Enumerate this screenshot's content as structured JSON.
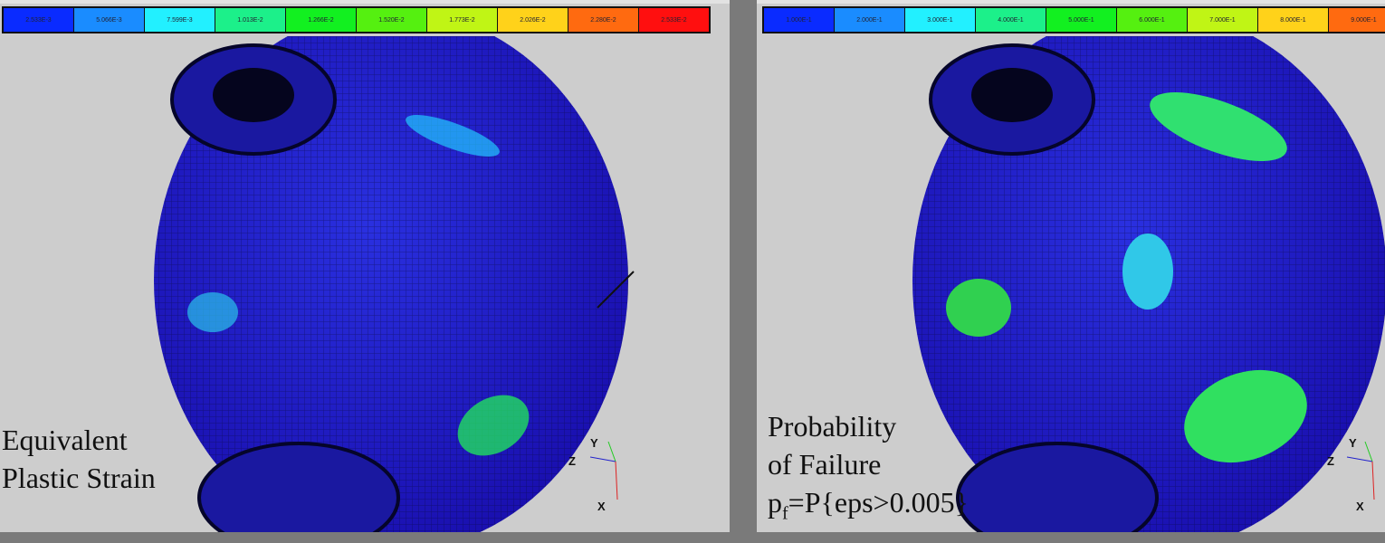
{
  "left_panel": {
    "legend": [
      "2.533E-3",
      "5.066E-3",
      "7.599E-3",
      "1.013E-2",
      "1.266E-2",
      "1.520E-2",
      "1.773E-2",
      "2.026E-2",
      "2.280E-2",
      "2.533E-2"
    ],
    "caption_line1": "Equivalent",
    "caption_line2": "Plastic Strain"
  },
  "right_panel": {
    "legend": [
      "1.000E-1",
      "2.000E-1",
      "3.000E-1",
      "4.000E-1",
      "5.000E-1",
      "6.000E-1",
      "7.000E-1",
      "8.000E-1",
      "9.000E-1"
    ],
    "caption_line1": "Probability",
    "caption_line2": "of Failure",
    "caption_line3_p": "p",
    "caption_line3_sub": "f",
    "caption_line3_rest": "=P{eps>0.005}"
  },
  "axes": {
    "y": "Y",
    "z": "Z",
    "x": "X"
  },
  "colors": [
    "#0a2bff",
    "#1a8cff",
    "#22f0ff",
    "#1cf08a",
    "#12f020",
    "#55f010",
    "#c0f515",
    "#ffd21a",
    "#ff6a10",
    "#ff0f0f"
  ]
}
